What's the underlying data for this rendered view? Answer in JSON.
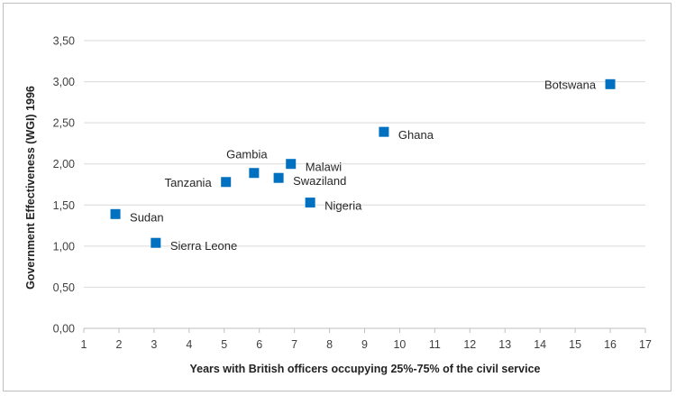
{
  "chart_data": {
    "type": "scatter",
    "xlabel": "Years with British officers occupying 25%-75% of the civil service",
    "ylabel": "Government Effectiveness (WGI) 1996",
    "xlim": [
      1,
      17
    ],
    "ylim": [
      0,
      3.5
    ],
    "x_ticks": [
      "1",
      "2",
      "3",
      "4",
      "5",
      "6",
      "7",
      "8",
      "9",
      "10",
      "11",
      "12",
      "13",
      "14",
      "15",
      "16",
      "17"
    ],
    "y_ticks": [
      "0,00",
      "0,50",
      "1,00",
      "1,50",
      "2,00",
      "2,50",
      "3,00",
      "3,50"
    ],
    "grid": "horizontal",
    "marker_color": "#0070c0",
    "points": [
      {
        "label": "Sudan",
        "x": 1.9,
        "y": 1.39,
        "label_side": "right"
      },
      {
        "label": "Sierra Leone",
        "x": 3.05,
        "y": 1.04,
        "label_side": "right"
      },
      {
        "label": "Tanzania",
        "x": 5.05,
        "y": 1.78,
        "label_side": "left"
      },
      {
        "label": "Gambia",
        "x": 5.85,
        "y": 1.89,
        "label_side": "above"
      },
      {
        "label": "Swaziland",
        "x": 6.55,
        "y": 1.83,
        "label_side": "right"
      },
      {
        "label": "Malawi",
        "x": 6.9,
        "y": 2.0,
        "label_side": "right"
      },
      {
        "label": "Nigeria",
        "x": 7.45,
        "y": 1.53,
        "label_side": "right"
      },
      {
        "label": "Ghana",
        "x": 9.55,
        "y": 2.39,
        "label_side": "right"
      },
      {
        "label": "Botswana",
        "x": 16.0,
        "y": 2.97,
        "label_side": "left"
      }
    ]
  }
}
